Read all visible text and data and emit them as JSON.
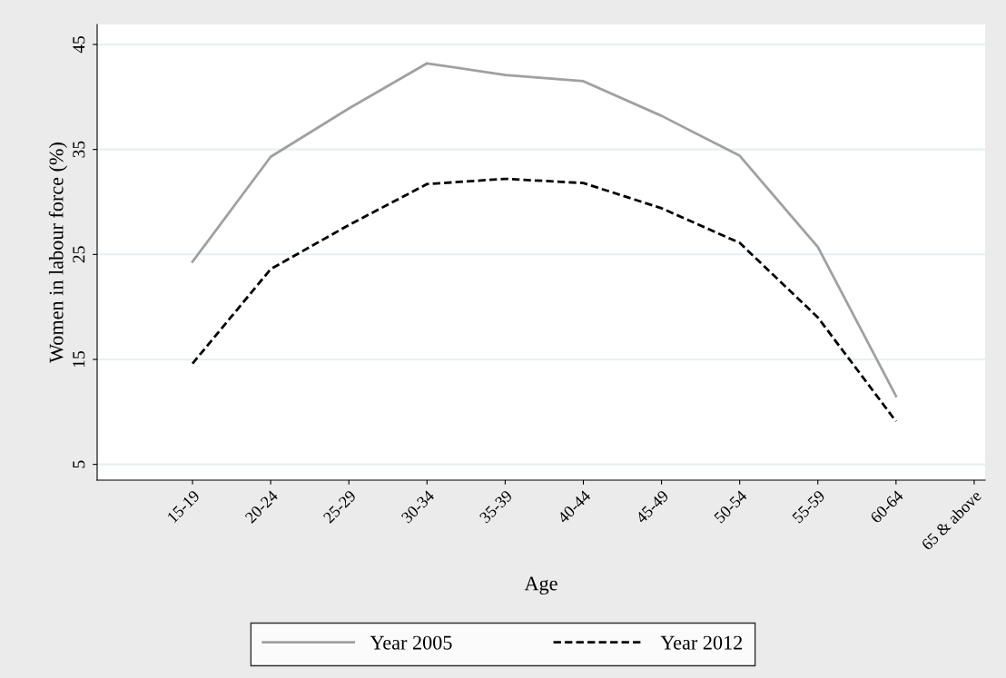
{
  "chart_data": {
    "type": "line",
    "xlabel": "Age",
    "ylabel": "Women in labour force (%)",
    "categories": [
      "15-19",
      "20-24",
      "25-29",
      "30-34",
      "35-39",
      "40-44",
      "45-49",
      "50-54",
      "55-59",
      "60-64",
      "65 & above"
    ],
    "series": [
      {
        "name": "Year 2005",
        "color": "#a0a0a0",
        "line_style": "solid",
        "values": [
          24.3,
          34.3,
          38.9,
          43.2,
          42.1,
          41.5,
          38.2,
          34.4,
          25.7,
          11.5,
          null
        ]
      },
      {
        "name": "Year 2012",
        "color": "#000000",
        "line_style": "dashed",
        "values": [
          14.6,
          23.6,
          27.8,
          31.7,
          32.2,
          31.8,
          29.4,
          26.1,
          19.0,
          9.1,
          null
        ]
      }
    ],
    "ylim": [
      3.5,
      46.9
    ],
    "yticks": [
      5,
      15,
      25,
      35,
      45
    ],
    "grid": "y",
    "legend": "bottom",
    "marker": "none"
  }
}
